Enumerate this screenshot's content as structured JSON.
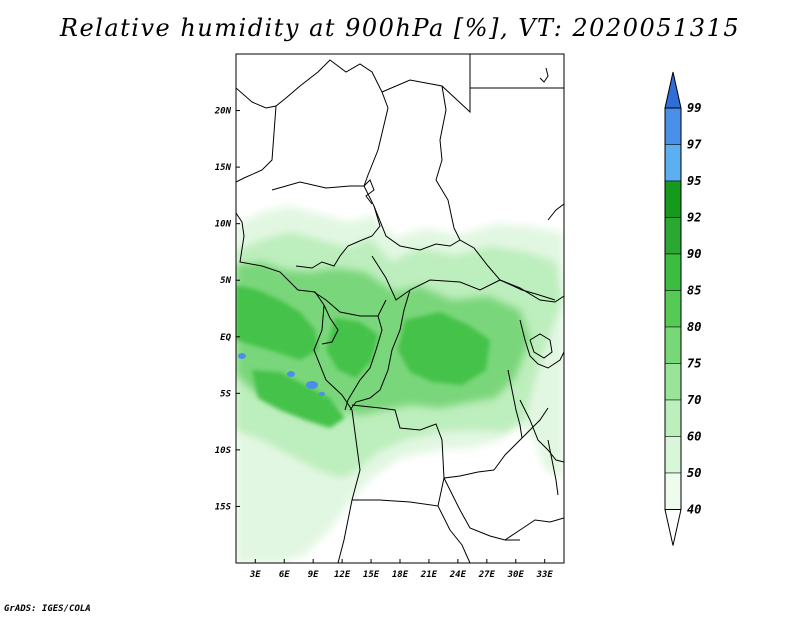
{
  "title": "Relative humidity at 900hPa [%], VT: 2020051315",
  "credit": "GrADS: IGES/COLA",
  "map": {
    "projection": "latlon",
    "lon_range": [
      1,
      35
    ],
    "lat_range": [
      -20,
      25
    ],
    "lon_ticks": [
      "3E",
      "6E",
      "9E",
      "12E",
      "15E",
      "18E",
      "21E",
      "24E",
      "27E",
      "30E",
      "33E"
    ],
    "lat_ticks": [
      "20N",
      "15N",
      "10N",
      "5N",
      "EQ",
      "5S",
      "10S",
      "15S"
    ]
  },
  "legend": {
    "levels": [
      "99",
      "97",
      "95",
      "92",
      "90",
      "85",
      "80",
      "75",
      "70",
      "60",
      "50",
      "40"
    ],
    "colors": [
      "#2f6ed6",
      "#4a8fea",
      "#5cb0f0",
      "#159a1c",
      "#2aa832",
      "#3bbd40",
      "#55cb55",
      "#78d878",
      "#9ae49a",
      "#bcefbc",
      "#d8f7d8",
      "#eefcee"
    ],
    "open_ends": true
  },
  "colors": {
    "humid_main": "#3bbd40",
    "humid_light": "#bcefbc",
    "humid_faint": "#e4f8e4",
    "saturation": "#4a8fea",
    "border": "#000000"
  }
}
